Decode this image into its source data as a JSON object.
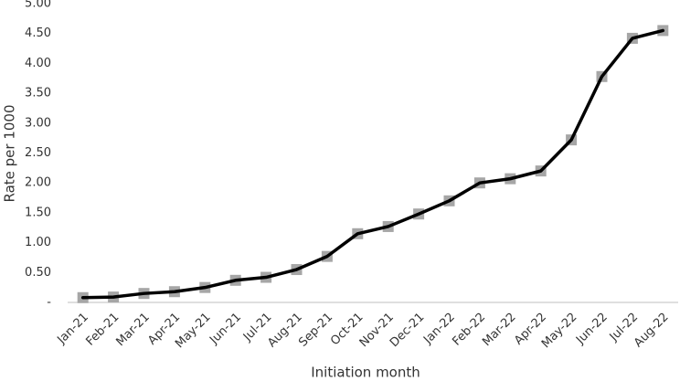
{
  "chart_data": {
    "type": "line",
    "x_label": "Initiation month",
    "y_label": "Rate per 1000",
    "categories": [
      "Jan-21",
      "Feb-21",
      "Mar-21",
      "Apr-21",
      "May-21",
      "Jun-21",
      "Jul-21",
      "Aug-21",
      "Sep-21",
      "Oct-21",
      "Nov-21",
      "Dec-21",
      "Jan-22",
      "Feb-22",
      "Mar-22",
      "Apr-22",
      "May-22",
      "Jun-22",
      "Jul-22",
      "Aug-22"
    ],
    "values": [
      0.08,
      0.09,
      0.15,
      0.18,
      0.25,
      0.37,
      0.42,
      0.55,
      0.77,
      1.15,
      1.27,
      1.48,
      1.7,
      2.0,
      2.07,
      2.2,
      2.72,
      3.78,
      4.42,
      4.55
    ],
    "color": "#000000",
    "marker_color": "#a6a6a6",
    "ylim": [
      0,
      5
    ],
    "yticks": [
      {
        "value": 0,
        "label": "-"
      },
      {
        "value": 0.5,
        "label": "0.50"
      },
      {
        "value": 1,
        "label": "1.00"
      },
      {
        "value": 1.5,
        "label": "1.50"
      },
      {
        "value": 2,
        "label": "2.00"
      },
      {
        "value": 2.5,
        "label": "2.50"
      },
      {
        "value": 3,
        "label": "3.00"
      },
      {
        "value": 3.5,
        "label": "3.50"
      },
      {
        "value": 4,
        "label": "4.00"
      },
      {
        "value": 4.5,
        "label": "4.50"
      },
      {
        "value": 5,
        "label": "5.00"
      }
    ],
    "grid": false
  }
}
